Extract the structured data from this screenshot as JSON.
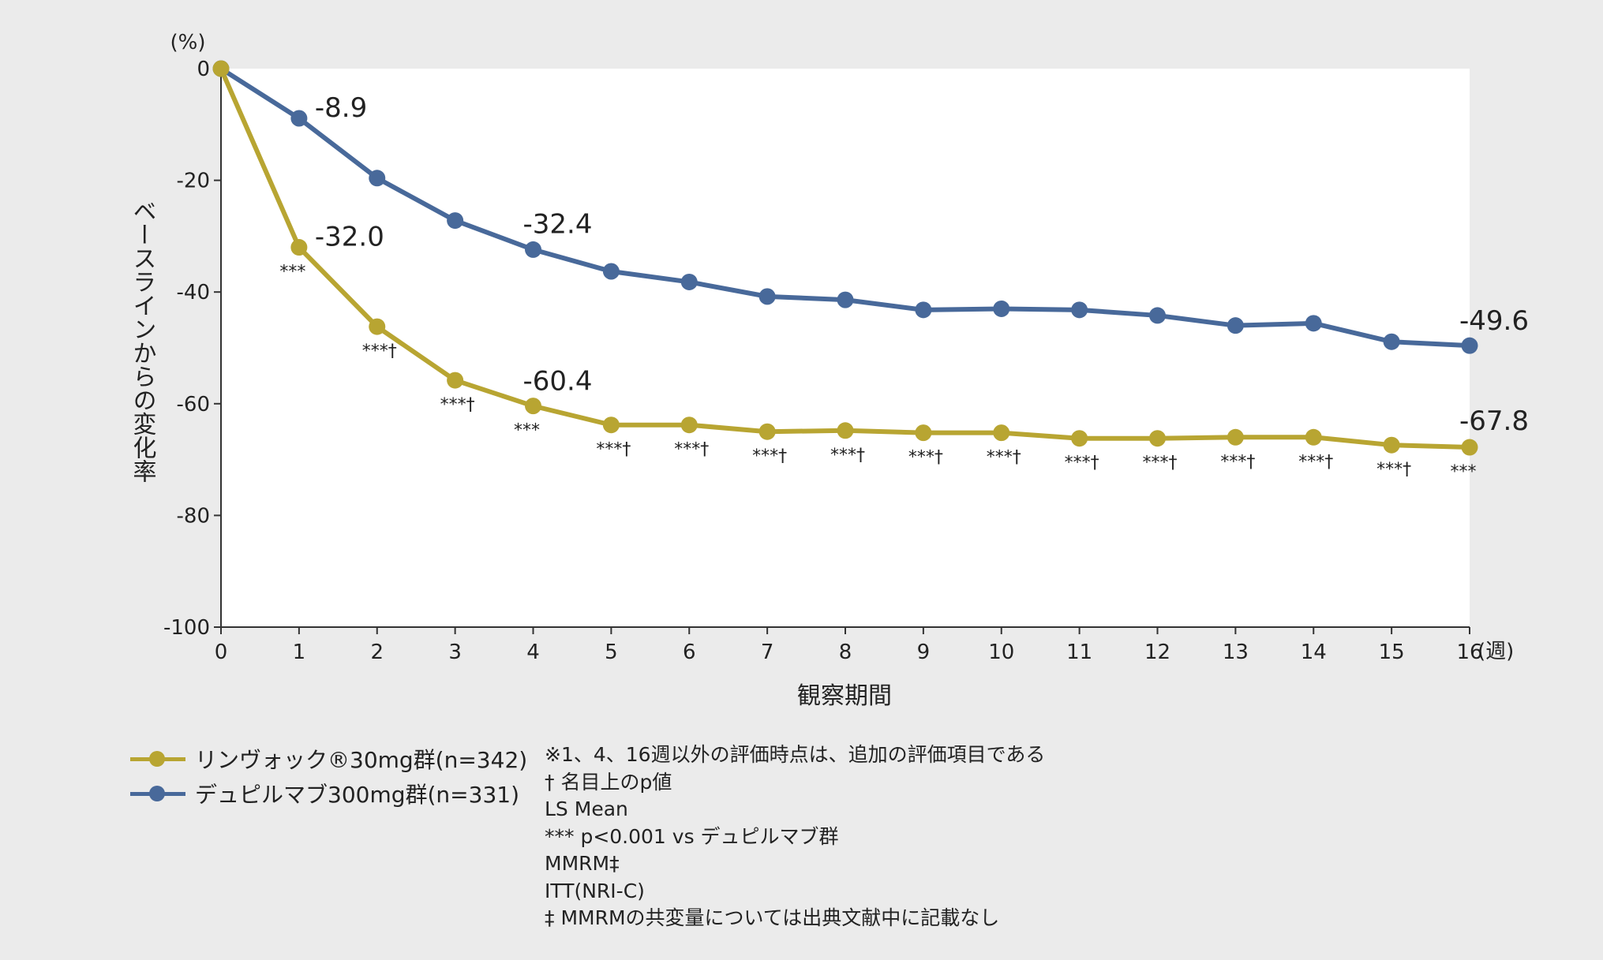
{
  "chart_data": {
    "type": "line",
    "title": "",
    "ylabel": "ベースラインからの変化率",
    "y_unit": "(%)",
    "xlabel": "観察期間",
    "x_unit": "(週)",
    "x": [
      0,
      1,
      2,
      3,
      4,
      5,
      6,
      7,
      8,
      9,
      10,
      11,
      12,
      13,
      14,
      15,
      16
    ],
    "ylim": [
      -100,
      0
    ],
    "yticks": [
      0,
      -20,
      -40,
      -60,
      -80,
      -100
    ],
    "series": [
      {
        "name": "リンヴォック®30mg群(n=342)",
        "color": "#b8a532",
        "values": [
          0,
          -32.0,
          -46.2,
          -55.8,
          -60.4,
          -63.8,
          -63.8,
          -65.0,
          -64.8,
          -65.2,
          -65.2,
          -66.2,
          -66.2,
          -66.0,
          -66.0,
          -67.4,
          -67.8
        ],
        "annotations": [
          "",
          "***",
          "***†",
          "***†",
          "***",
          "***†",
          "***†",
          "***†",
          "***†",
          "***†",
          "***†",
          "***†",
          "***†",
          "***†",
          "***†",
          "***†",
          "***"
        ],
        "labels": [
          {
            "x": 1,
            "text": "-32.0"
          },
          {
            "x": 4,
            "text": "-60.4"
          },
          {
            "x": 16,
            "text": "-67.8"
          }
        ]
      },
      {
        "name": "デュピルマブ300mg群(n=331)",
        "color": "#48699a",
        "values": [
          0,
          -8.9,
          -19.6,
          -27.2,
          -32.4,
          -36.3,
          -38.2,
          -40.8,
          -41.4,
          -43.2,
          -43.0,
          -43.2,
          -44.2,
          -46.0,
          -45.6,
          -48.9,
          -49.6
        ],
        "labels": [
          {
            "x": 1,
            "text": "-8.9"
          },
          {
            "x": 4,
            "text": "-32.4"
          },
          {
            "x": 16,
            "text": "-49.6"
          }
        ]
      }
    ],
    "legend": {
      "position": "bottom-left",
      "items": [
        "リンヴォック®30mg群(n=342)",
        "デュピルマブ300mg群(n=331)"
      ]
    },
    "notes": [
      "※1、4、16週以外の評価時点は、追加の評価項目である",
      "† 名目上のp値",
      "LS Mean",
      "*** p<0.001 vs デュピルマブ群",
      "MMRM‡",
      "ITT(NRI-C)",
      "‡ MMRMの共変量については出典文献中に記載なし"
    ]
  }
}
